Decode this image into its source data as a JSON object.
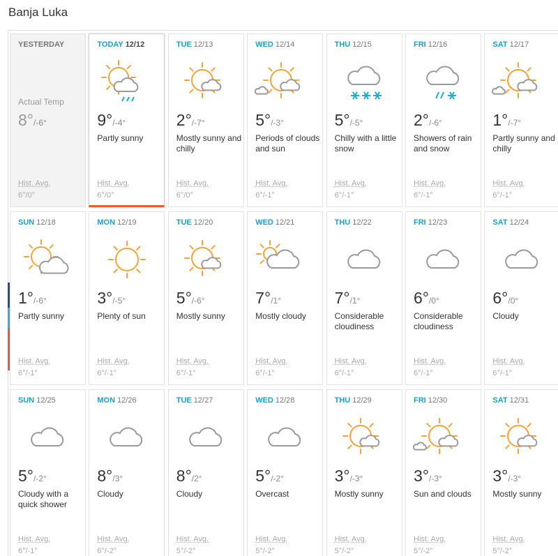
{
  "header": {
    "title": "Banja Luka"
  },
  "days": [
    {
      "day": "YESTERDAY",
      "note": "Actual Temp",
      "high": "8°",
      "low": "/-6°",
      "hist_label": "Hist. Avg.",
      "hist": "6°/0°"
    },
    {
      "day": "TODAY",
      "date": "12/12",
      "high": "9°",
      "low": "/-4°",
      "condition": "Partly sunny",
      "hist_label": "Hist. Avg.",
      "hist": "6°/0°"
    },
    {
      "day": "TUE",
      "date": "12/13",
      "high": "2°",
      "low": "/-7°",
      "condition": "Mostly sunny and chilly",
      "hist_label": "Hist. Avg.",
      "hist": "6°/0°"
    },
    {
      "day": "WED",
      "date": "12/14",
      "high": "5°",
      "low": "/-3°",
      "condition": "Periods of clouds and sun",
      "hist_label": "Hist. Avg.",
      "hist": "6°/-1°"
    },
    {
      "day": "THU",
      "date": "12/15",
      "high": "5°",
      "low": "/-5°",
      "condition": "Chilly with a little snow",
      "hist_label": "Hist. Avg.",
      "hist": "6°/-1°"
    },
    {
      "day": "FRI",
      "date": "12/16",
      "high": "2°",
      "low": "/-6°",
      "condition": "Showers of rain and snow",
      "hist_label": "Hist. Avg.",
      "hist": "6°/-1°"
    },
    {
      "day": "SAT",
      "date": "12/17",
      "high": "1°",
      "low": "/-7°",
      "condition": "Partly sunny and chilly",
      "hist_label": "Hist. Avg.",
      "hist": "6°/-1°"
    },
    {
      "day": "SUN",
      "date": "12/18",
      "high": "1°",
      "low": "/-6°",
      "condition": "Partly sunny",
      "hist_label": "Hist. Avg.",
      "hist": "6°/-1°"
    },
    {
      "day": "MON",
      "date": "12/19",
      "high": "3°",
      "low": "/-5°",
      "condition": "Plenty of sun",
      "hist_label": "Hist. Avg.",
      "hist": "6°/-1°"
    },
    {
      "day": "TUE",
      "date": "12/20",
      "high": "5°",
      "low": "/-6°",
      "condition": "Mostly sunny",
      "hist_label": "Hist. Avg.",
      "hist": "6°/-1°"
    },
    {
      "day": "WED",
      "date": "12/21",
      "high": "7°",
      "low": "/1°",
      "condition": "Mostly cloudy",
      "hist_label": "Hist. Avg.",
      "hist": "6°/-1°"
    },
    {
      "day": "THU",
      "date": "12/22",
      "high": "7°",
      "low": "/1°",
      "condition": "Considerable cloudiness",
      "hist_label": "Hist. Avg.",
      "hist": "6°/-1°"
    },
    {
      "day": "FRI",
      "date": "12/23",
      "high": "6°",
      "low": "/0°",
      "condition": "Considerable cloudiness",
      "hist_label": "Hist. Avg.",
      "hist": "6°/-1°"
    },
    {
      "day": "SAT",
      "date": "12/24",
      "high": "6°",
      "low": "/0°",
      "condition": "Cloudy",
      "hist_label": "Hist. Avg.",
      "hist": "6°/-1°"
    },
    {
      "day": "SUN",
      "date": "12/25",
      "high": "5°",
      "low": "/-2°",
      "condition": "Cloudy with a quick shower",
      "hist_label": "Hist. Avg.",
      "hist": "6°/-1°"
    },
    {
      "day": "MON",
      "date": "12/26",
      "high": "8°",
      "low": "/3°",
      "condition": "Cloudy",
      "hist_label": "Hist. Avg.",
      "hist": "6°/-2°"
    },
    {
      "day": "TUE",
      "date": "12/27",
      "high": "8°",
      "low": "/2°",
      "condition": "Cloudy",
      "hist_label": "Hist. Avg.",
      "hist": "5°/-2°"
    },
    {
      "day": "WED",
      "date": "12/28",
      "high": "5°",
      "low": "/-2°",
      "condition": "Overcast",
      "hist_label": "Hist. Avg.",
      "hist": "5°/-2°"
    },
    {
      "day": "THU",
      "date": "12/29",
      "high": "3°",
      "low": "/-3°",
      "condition": "Mostly sunny",
      "hist_label": "Hist. Avg.",
      "hist": "5°/-2°"
    },
    {
      "day": "FRI",
      "date": "12/30",
      "high": "3°",
      "low": "/-3°",
      "condition": "Sun and clouds",
      "hist_label": "Hist. Avg.",
      "hist": "5°/-2°"
    },
    {
      "day": "SAT",
      "date": "12/31",
      "high": "3°",
      "low": "/-3°",
      "condition": "Mostly sunny",
      "hist_label": "Hist. Avg.",
      "hist": "5°/-2°"
    }
  ]
}
